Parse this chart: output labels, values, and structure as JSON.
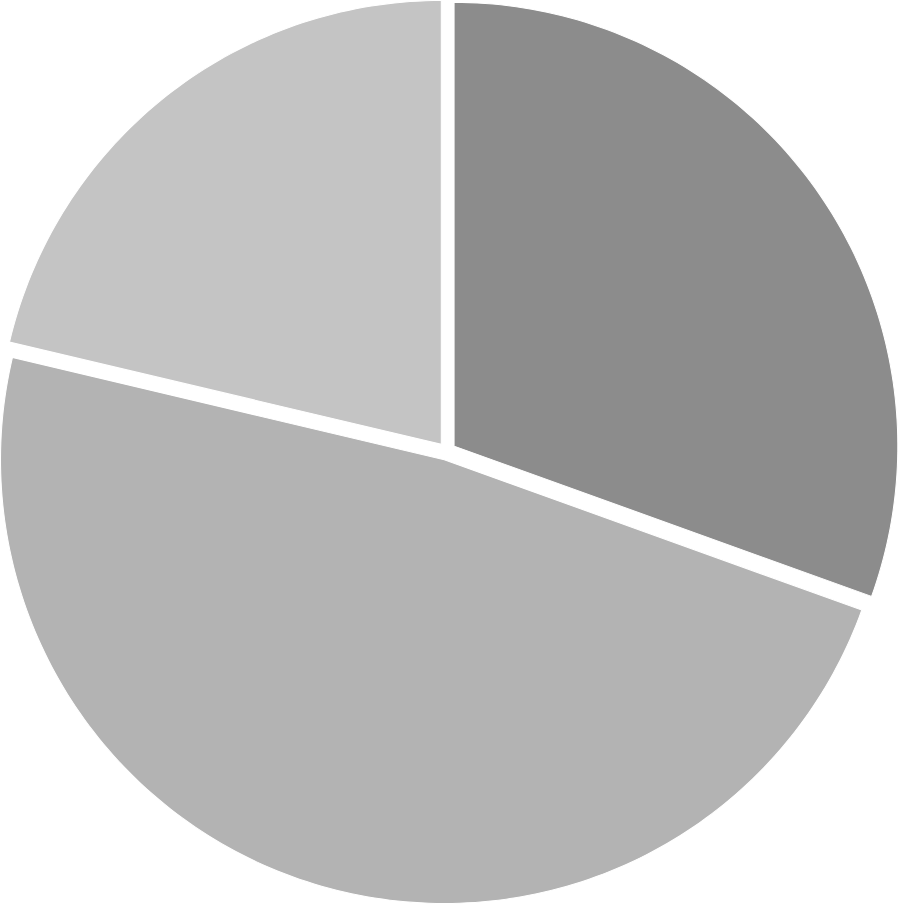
{
  "chart_data": {
    "type": "pie",
    "categories": [
      null,
      null,
      null
    ],
    "values": [
      30.5,
      48.2,
      21.3
    ],
    "colors": [
      "#8c8c8c",
      "#b3b3b3",
      "#c4c4c4"
    ]
  }
}
